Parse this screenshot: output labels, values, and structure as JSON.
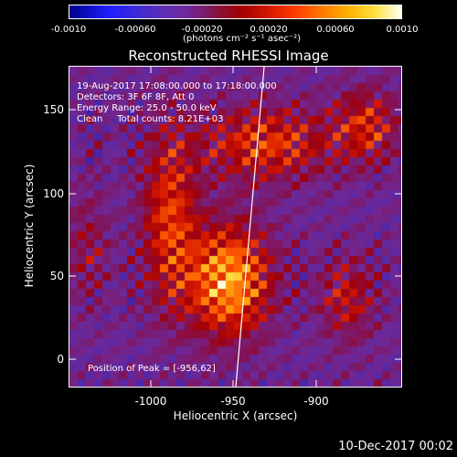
{
  "colorbar": {
    "ticks": [
      "-0.0010",
      "-0.00060",
      "-0.00020",
      "0.00020",
      "0.00060",
      "0.0010"
    ],
    "unit_label": "(photons cm⁻² s⁻¹ asec⁻²)",
    "range": [
      -0.001,
      0.001
    ]
  },
  "chart_data": {
    "type": "heatmap",
    "title": "Reconstructed RHESSI Image",
    "xlabel": "Heliocentric X (arcsec)",
    "ylabel": "Heliocentric Y (arcsec)",
    "xlim": [
      -1050,
      -865
    ],
    "ylim": [
      -15,
      180
    ],
    "x_ticks": [
      "-1000",
      "-950",
      "-900"
    ],
    "y_ticks": [
      "150",
      "100",
      "50",
      "0"
    ],
    "peak": {
      "x": -956,
      "y": 62
    },
    "limb_line": true
  },
  "info": {
    "time_range": "19-Aug-2017 17:08:00.000 to 17:18:00.000",
    "detectors": "Detectors: 3F 6F 8F, Att 0",
    "energy": "Energy Range: 25.0 - 50.0 keV",
    "clean": "Clean     Total counts: 8.21E+03",
    "peak_text": "Position of Peak = [-956,62]"
  },
  "footer": {
    "date": "10-Dec-2017 00:02"
  }
}
